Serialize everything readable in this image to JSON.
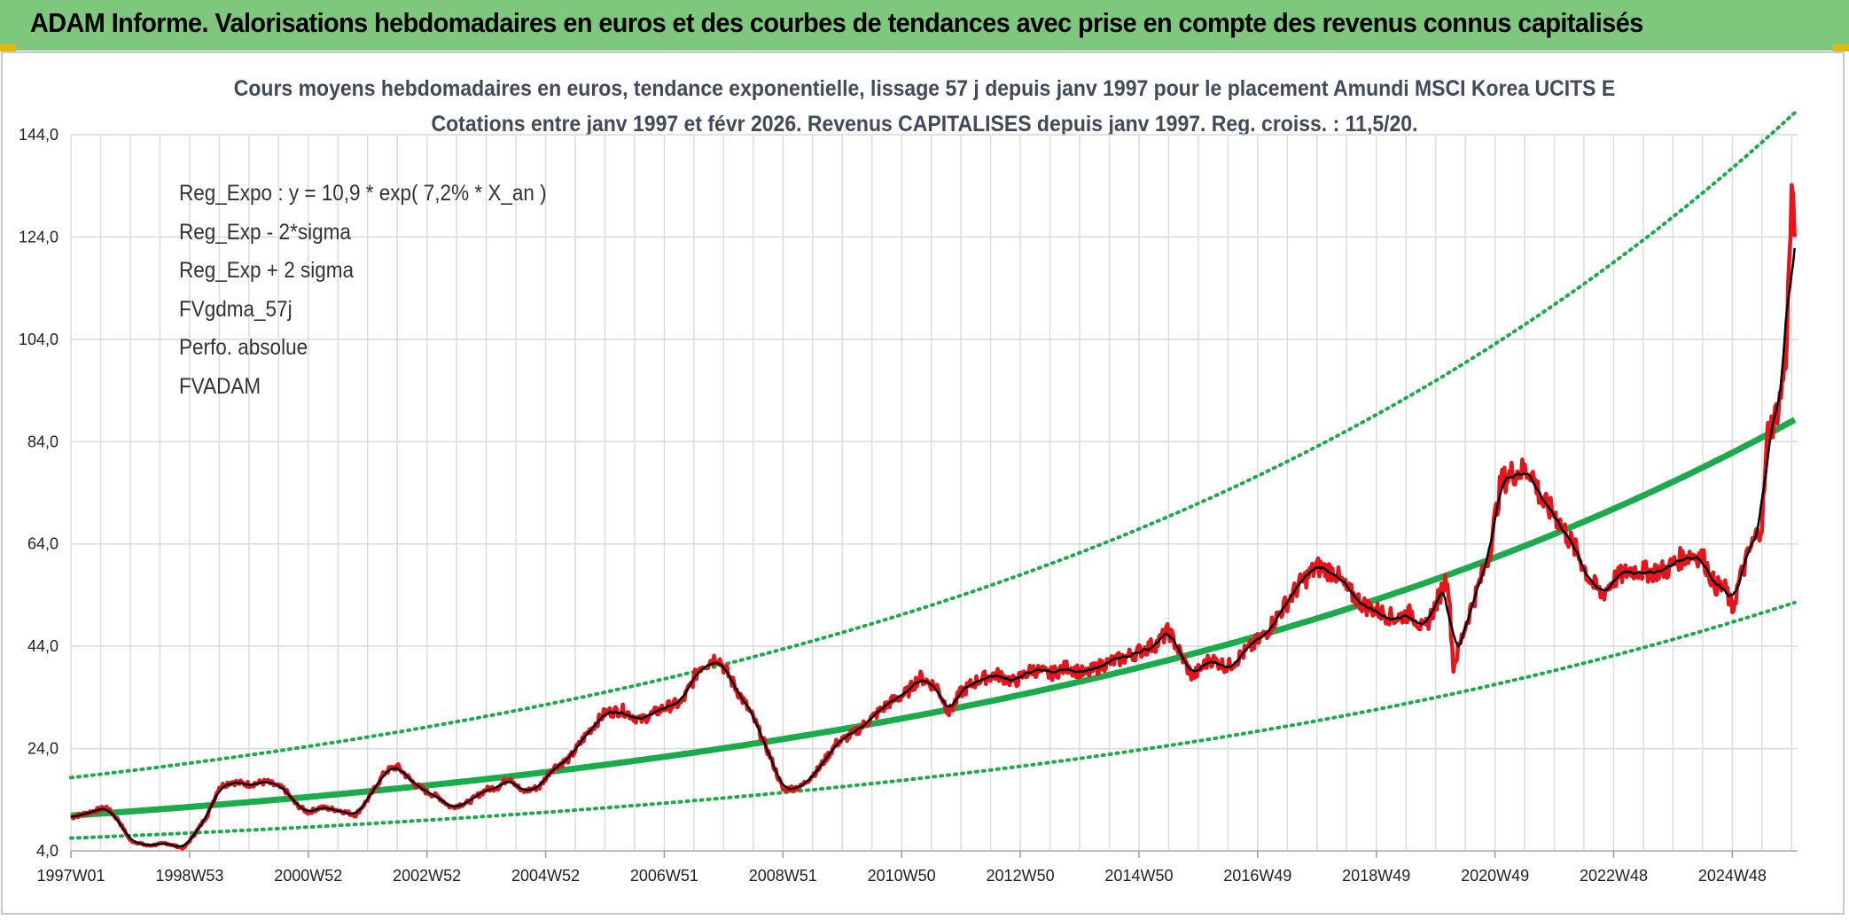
{
  "header": {
    "title": "ADAM Informe. Valorisations hebdomadaires en euros et des courbes de tendances avec prise en compte des revenus connus capitalisés"
  },
  "colors": {
    "banner": "#7dc87c",
    "trend": "#1aab4b",
    "smooth": "#000000",
    "fv": "#e8141b",
    "perf": "#e8141b"
  },
  "chart_data": {
    "type": "line",
    "title_line1": "Cours moyens hebdomadaires en euros, tendance exponentielle, lissage 57 j depuis janv 1997 pour le placement Amundi MSCI Korea UCITS E",
    "title_line2": "Cotations entre janv 1997 et févr 2026. Revenus CAPITALISES depuis janv 1997. Reg. croiss. : 11,5/20.",
    "ylim": [
      4,
      144
    ],
    "y_ticks": [
      "4,0",
      "24,0",
      "44,0",
      "64,0",
      "84,0",
      "104,0",
      "124,0",
      "144,0"
    ],
    "x_range_years": [
      1997.0,
      2026.1
    ],
    "x_ticks": [
      {
        "label": "1997W01",
        "year": 1997.0
      },
      {
        "label": "1998W53",
        "year": 1999.0
      },
      {
        "label": "2000W52",
        "year": 2001.0
      },
      {
        "label": "2002W52",
        "year": 2003.0
      },
      {
        "label": "2004W52",
        "year": 2005.0
      },
      {
        "label": "2006W51",
        "year": 2007.0
      },
      {
        "label": "2008W51",
        "year": 2009.0
      },
      {
        "label": "2010W50",
        "year": 2011.0
      },
      {
        "label": "2012W50",
        "year": 2013.0
      },
      {
        "label": "2014W50",
        "year": 2015.0
      },
      {
        "label": "2016W49",
        "year": 2017.0
      },
      {
        "label": "2018W49",
        "year": 2019.0
      },
      {
        "label": "2020W49",
        "year": 2021.0
      },
      {
        "label": "2022W48",
        "year": 2023.0
      },
      {
        "label": "2024W48",
        "year": 2025.0
      }
    ],
    "regression": {
      "a": 10.9,
      "rate": 0.072,
      "sigma_factor": 1.68
    },
    "legend": [
      {
        "key": "reg",
        "label": "Reg_Expo : y = 10,9 * exp( 7,2% *  X_an )"
      },
      {
        "key": "lo",
        "label": "Reg_Exp - 2*sigma"
      },
      {
        "key": "hi",
        "label": "Reg_Exp + 2 sigma"
      },
      {
        "key": "smooth",
        "label": "FVgdma_57j"
      },
      {
        "key": "perf",
        "label": "Perfo. absolue"
      },
      {
        "key": "fv",
        "label": "FVADAM"
      }
    ],
    "series_fvadam": [
      [
        1997.0,
        10.5
      ],
      [
        1997.3,
        11.5
      ],
      [
        1997.6,
        12.5
      ],
      [
        1997.8,
        10.0
      ],
      [
        1998.0,
        6.0
      ],
      [
        1998.3,
        5.0
      ],
      [
        1998.6,
        5.5
      ],
      [
        1998.9,
        4.5
      ],
      [
        1999.1,
        7.5
      ],
      [
        1999.3,
        11.0
      ],
      [
        1999.5,
        16.5
      ],
      [
        1999.7,
        17.5
      ],
      [
        2000.0,
        17.0
      ],
      [
        2000.3,
        17.5
      ],
      [
        2000.6,
        16.0
      ],
      [
        2000.8,
        13.0
      ],
      [
        2001.0,
        11.5
      ],
      [
        2001.2,
        12.5
      ],
      [
        2001.5,
        12.0
      ],
      [
        2001.8,
        11.0
      ],
      [
        2002.0,
        14.0
      ],
      [
        2002.3,
        19.5
      ],
      [
        2002.5,
        20.5
      ],
      [
        2002.8,
        17.0
      ],
      [
        2003.0,
        15.5
      ],
      [
        2003.2,
        14.5
      ],
      [
        2003.4,
        12.5
      ],
      [
        2003.7,
        13.5
      ],
      [
        2004.0,
        16.0
      ],
      [
        2004.2,
        16.5
      ],
      [
        2004.4,
        18.5
      ],
      [
        2004.6,
        15.5
      ],
      [
        2004.9,
        16.5
      ],
      [
        2005.1,
        20.0
      ],
      [
        2005.4,
        22.0
      ],
      [
        2005.7,
        27.0
      ],
      [
        2006.0,
        31.0
      ],
      [
        2006.3,
        31.5
      ],
      [
        2006.6,
        29.5
      ],
      [
        2007.0,
        32.0
      ],
      [
        2007.3,
        33.0
      ],
      [
        2007.6,
        40.0
      ],
      [
        2007.9,
        42.0
      ],
      [
        2008.2,
        36.0
      ],
      [
        2008.5,
        30.0
      ],
      [
        2008.8,
        22.0
      ],
      [
        2009.0,
        16.0
      ],
      [
        2009.3,
        16.5
      ],
      [
        2009.6,
        20.0
      ],
      [
        2009.9,
        25.0
      ],
      [
        2010.2,
        27.0
      ],
      [
        2010.5,
        30.0
      ],
      [
        2010.8,
        33.0
      ],
      [
        2011.1,
        35.0
      ],
      [
        2011.3,
        38.0
      ],
      [
        2011.6,
        36.0
      ],
      [
        2011.8,
        31.0
      ],
      [
        2012.0,
        35.0
      ],
      [
        2012.3,
        37.5
      ],
      [
        2012.6,
        38.5
      ],
      [
        2012.9,
        37.0
      ],
      [
        2013.2,
        39.5
      ],
      [
        2013.5,
        38.5
      ],
      [
        2013.8,
        40.0
      ],
      [
        2014.1,
        38.5
      ],
      [
        2014.4,
        40.5
      ],
      [
        2014.7,
        41.5
      ],
      [
        2015.0,
        43.0
      ],
      [
        2015.3,
        44.5
      ],
      [
        2015.5,
        47.0
      ],
      [
        2015.7,
        42.5
      ],
      [
        2015.9,
        38.0
      ],
      [
        2016.2,
        41.5
      ],
      [
        2016.5,
        40.0
      ],
      [
        2016.8,
        43.0
      ],
      [
        2017.1,
        46.0
      ],
      [
        2017.4,
        51.0
      ],
      [
        2017.7,
        56.0
      ],
      [
        2018.0,
        59.5
      ],
      [
        2018.3,
        58.5
      ],
      [
        2018.5,
        55.0
      ],
      [
        2018.8,
        52.0
      ],
      [
        2019.0,
        51.0
      ],
      [
        2019.3,
        49.5
      ],
      [
        2019.6,
        50.5
      ],
      [
        2019.8,
        47.0
      ],
      [
        2020.0,
        52.0
      ],
      [
        2020.2,
        58.0
      ],
      [
        2020.3,
        40.0
      ],
      [
        2020.5,
        48.0
      ],
      [
        2020.7,
        55.0
      ],
      [
        2020.9,
        62.0
      ],
      [
        2021.1,
        76.0
      ],
      [
        2021.3,
        78.0
      ],
      [
        2021.6,
        78.5
      ],
      [
        2021.8,
        72.0
      ],
      [
        2022.0,
        70.0
      ],
      [
        2022.2,
        66.0
      ],
      [
        2022.4,
        62.0
      ],
      [
        2022.6,
        57.0
      ],
      [
        2022.8,
        54.0
      ],
      [
        2023.0,
        57.0
      ],
      [
        2023.3,
        59.0
      ],
      [
        2023.6,
        58.5
      ],
      [
        2023.9,
        59.0
      ],
      [
        2024.1,
        61.0
      ],
      [
        2024.3,
        62.0
      ],
      [
        2024.5,
        61.5
      ],
      [
        2024.7,
        56.0
      ],
      [
        2024.9,
        55.0
      ],
      [
        2025.0,
        51.0
      ],
      [
        2025.1,
        56.0
      ],
      [
        2025.3,
        63.0
      ],
      [
        2025.5,
        68.0
      ],
      [
        2025.6,
        86.0
      ],
      [
        2025.7,
        88.0
      ],
      [
        2025.8,
        92.0
      ],
      [
        2025.9,
        100.0
      ],
      [
        2026.0,
        132.0
      ],
      [
        2026.05,
        124.0
      ]
    ]
  }
}
